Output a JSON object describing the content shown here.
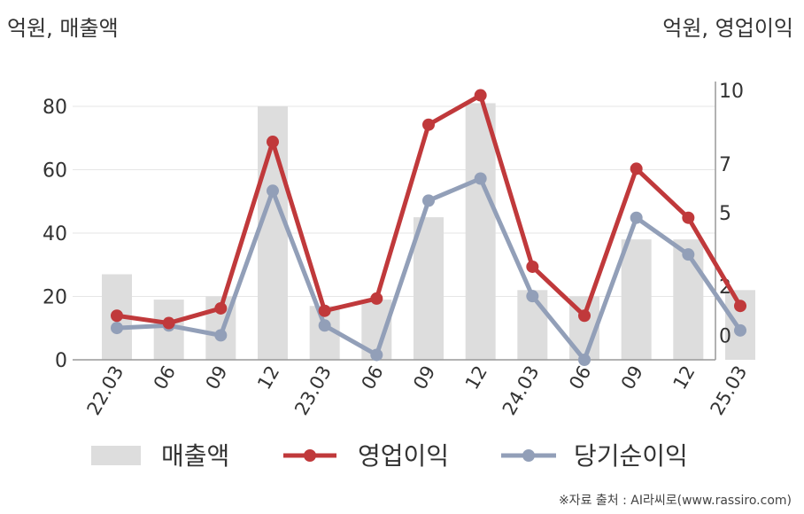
{
  "units": {
    "left": "억원, 매출액",
    "right": "억원, 영업이익"
  },
  "source": "※자료 출처 : AI라씨로(www.rassiro.com)",
  "colors": {
    "revenue": "#dddddd",
    "operating_profit": "#c0393b",
    "net_income": "#929fb8",
    "axis": "#999999",
    "grid": "#e6e6e6",
    "text": "#333333"
  },
  "chart_data": {
    "type": "bar",
    "categories": [
      "22.03",
      "06",
      "09",
      "12",
      "23.03",
      "06",
      "09",
      "12",
      "24.03",
      "06",
      "09",
      "12",
      "25.03"
    ],
    "y_left": {
      "ticks": [
        0,
        20,
        40,
        60,
        80
      ],
      "ylim": [
        0,
        80
      ]
    },
    "y_right": {
      "ticks": [
        0,
        2,
        5,
        7,
        10
      ],
      "ylim": [
        -1,
        10
      ]
    },
    "grid": true,
    "legend_position": "bottom",
    "series": [
      {
        "name": "매출액",
        "type": "bar",
        "axis": "left",
        "values": [
          27,
          19,
          20,
          80,
          17,
          19,
          45,
          81,
          22,
          20,
          38,
          38,
          22
        ]
      },
      {
        "name": "영업이익",
        "type": "line",
        "axis": "right",
        "values": [
          0.8,
          0.5,
          1.1,
          7.9,
          1.0,
          1.5,
          8.6,
          9.8,
          2.8,
          0.8,
          6.8,
          4.8,
          1.2
        ]
      },
      {
        "name": "당기순이익",
        "type": "line",
        "axis": "right",
        "values": [
          0.3,
          0.4,
          0.0,
          5.9,
          0.4,
          -0.8,
          5.5,
          6.4,
          1.6,
          -1.0,
          4.8,
          3.3,
          0.2
        ]
      }
    ]
  }
}
